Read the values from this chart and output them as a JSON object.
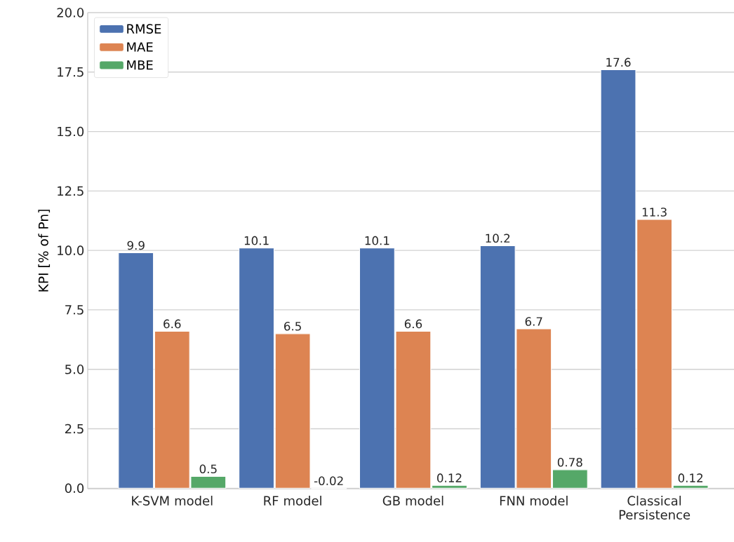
{
  "chart_data": {
    "type": "bar",
    "ylabel": "KPI [% of Pn]",
    "categories": [
      "K-SVM model",
      "RF model",
      "GB model",
      "FNN model",
      "Classical Persistence"
    ],
    "series": [
      {
        "name": "RMSE",
        "color": "#4c72b0",
        "values": [
          9.9,
          10.1,
          10.1,
          10.2,
          17.6
        ]
      },
      {
        "name": "MAE",
        "color": "#dd8452",
        "values": [
          6.6,
          6.5,
          6.6,
          6.7,
          11.3
        ]
      },
      {
        "name": "MBE",
        "color": "#55a868",
        "values": [
          0.5,
          -0.02,
          0.12,
          0.78,
          0.12
        ]
      }
    ],
    "ylim": [
      -0.02,
      20
    ],
    "yticks": [
      {
        "value": 0,
        "label": "0.0"
      },
      {
        "value": 2.5,
        "label": "2.5"
      },
      {
        "value": 5,
        "label": "5.0"
      },
      {
        "value": 7.5,
        "label": "7.5"
      },
      {
        "value": 10,
        "label": "10.0"
      },
      {
        "value": 12.5,
        "label": "12.5"
      },
      {
        "value": 15,
        "label": "15.0"
      },
      {
        "value": 17.5,
        "label": "17.5"
      },
      {
        "value": 20,
        "label": "20.0"
      }
    ],
    "grid": "y",
    "legend": "top left",
    "data_labels": true
  }
}
